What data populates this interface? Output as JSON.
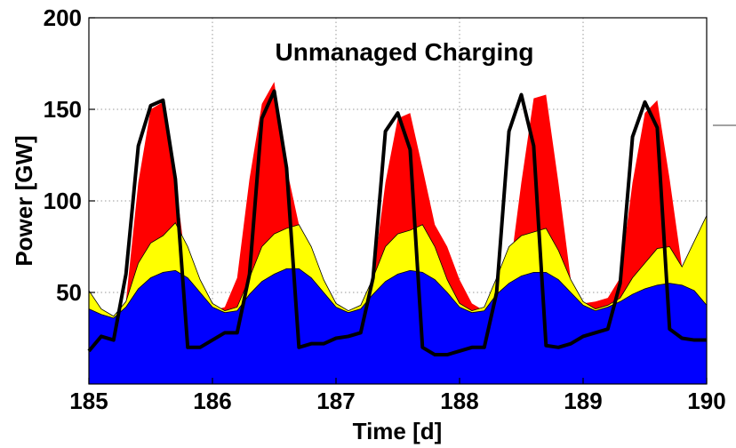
{
  "chart_data": {
    "type": "area",
    "title": "Unmanaged Charging",
    "xlabel": "Time [d]",
    "ylabel": "Power [GW]",
    "xlim": [
      185,
      190
    ],
    "ylim": [
      0,
      200
    ],
    "x_ticks": [
      "185",
      "186",
      "187",
      "188",
      "189",
      "190"
    ],
    "y_ticks": [
      "50",
      "100",
      "150",
      "200"
    ],
    "grid": true,
    "legend": "none",
    "x": [
      185.0,
      185.1,
      185.2,
      185.3,
      185.4,
      185.5,
      185.6,
      185.7,
      185.8,
      185.9,
      186.0,
      186.1,
      186.2,
      186.3,
      186.4,
      186.5,
      186.6,
      186.7,
      186.8,
      186.9,
      187.0,
      187.1,
      187.2,
      187.3,
      187.4,
      187.5,
      187.6,
      187.7,
      187.8,
      187.9,
      188.0,
      188.1,
      188.2,
      188.3,
      188.4,
      188.5,
      188.6,
      188.7,
      188.8,
      188.9,
      189.0,
      189.1,
      189.2,
      189.3,
      189.4,
      189.5,
      189.6,
      189.7,
      189.8,
      189.9,
      190.0
    ],
    "series": [
      {
        "color": "#0000ff",
        "values": [
          41,
          38,
          36,
          42,
          52,
          58,
          61,
          62,
          58,
          50,
          42,
          39,
          40,
          49,
          56,
          60,
          63,
          63,
          58,
          50,
          42,
          39,
          41,
          49,
          56,
          60,
          62,
          61,
          57,
          50,
          42,
          39,
          40,
          49,
          55,
          59,
          61,
          61,
          57,
          50,
          43,
          40,
          42,
          45,
          49,
          52,
          54,
          55,
          54,
          51,
          43
        ]
      },
      {
        "color": "#ffff00",
        "values": [
          51,
          41,
          37,
          45,
          66,
          77,
          81,
          88,
          75,
          57,
          44,
          40,
          42,
          58,
          75,
          82,
          85,
          87,
          75,
          57,
          44,
          40,
          43,
          58,
          75,
          82,
          84,
          87,
          75,
          57,
          44,
          40,
          42,
          58,
          75,
          81,
          83,
          85,
          73,
          57,
          45,
          41,
          43,
          47,
          58,
          66,
          74,
          75,
          64,
          78,
          92
        ]
      },
      {
        "color": "#ff0000",
        "values": [
          51,
          41,
          37,
          45,
          110,
          150,
          154,
          112,
          57,
          44,
          40,
          42,
          58,
          112,
          153,
          165,
          118,
          87,
          75,
          57,
          44,
          40,
          43,
          58,
          110,
          145,
          148,
          118,
          87,
          75,
          57,
          44,
          40,
          42,
          58,
          110,
          156,
          158,
          110,
          57,
          44,
          45,
          47,
          58,
          110,
          148,
          155,
          112,
          64,
          78,
          92
        ]
      },
      {
        "color": "#000000",
        "values": [
          18,
          26,
          24,
          60,
          130,
          152,
          155,
          112,
          20,
          20,
          24,
          28,
          28,
          60,
          145,
          160,
          118,
          20,
          22,
          22,
          25,
          26,
          28,
          58,
          138,
          148,
          128,
          20,
          16,
          16,
          18,
          20,
          20,
          50,
          138,
          158,
          130,
          21,
          20,
          22,
          26,
          28,
          30,
          55,
          135,
          154,
          140,
          30,
          25,
          24,
          24
        ]
      }
    ]
  }
}
